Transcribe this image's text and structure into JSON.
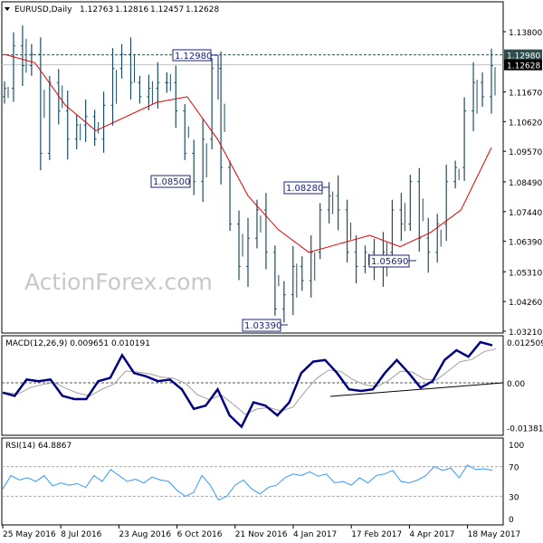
{
  "header": {
    "symbol": "EURUSD,Daily",
    "open": "1.12763",
    "high": "1.12816",
    "low": "1.12457",
    "close": "1.12628"
  },
  "watermark": "ActionForex.com",
  "colors": {
    "bars": "#1d4e63",
    "ma": "#e00000",
    "macd": "#000080",
    "signal": "#a0a0a0",
    "rsi": "#3399ff"
  },
  "chart_data": [
    {
      "type": "ohlc",
      "title": "EURUSD,Daily",
      "yticks": [
        "1.13800",
        "1.12980",
        "1.12628",
        "1.11670",
        "1.10620",
        "1.09570",
        "1.08490",
        "1.07440",
        "1.06390",
        "1.05310",
        "1.04260",
        "1.03210"
      ],
      "ylim": [
        1.0321,
        1.1435
      ],
      "current_price": "1.12628",
      "level_line": "1.12980",
      "annotations": [
        "1.12980",
        "1.08500",
        "1.08280",
        "1.05690",
        "1.03390"
      ],
      "closes": [
        1.118,
        1.133,
        1.126,
        1.13,
        1.095,
        1.12,
        1.11,
        1.1,
        1.105,
        1.108,
        1.1,
        1.112,
        1.125,
        1.13,
        1.12,
        1.115,
        1.118,
        1.12,
        1.12,
        1.11,
        1.095,
        1.085,
        1.1,
        1.125,
        1.09,
        1.07,
        1.055,
        1.065,
        1.075,
        1.06,
        1.04,
        1.045,
        1.055,
        1.05,
        1.06,
        1.075,
        1.08,
        1.075,
        1.06,
        1.055,
        1.06,
        1.055,
        1.06,
        1.075,
        1.07,
        1.085,
        1.065,
        1.06,
        1.07,
        1.085,
        1.09,
        1.11,
        1.12,
        1.115,
        1.126
      ],
      "moving_average": [
        1.13,
        1.127,
        1.112,
        1.103,
        1.108,
        1.113,
        1.115,
        1.1,
        1.08,
        1.068,
        1.06,
        1.063,
        1.066,
        1.062,
        1.067,
        1.075,
        1.097
      ]
    },
    {
      "type": "line",
      "title": "MACD(12,26,9) 0.009651 0.010191",
      "yticks": [
        "0.012509",
        "0.00",
        "-0.013813"
      ],
      "ylim": [
        -0.0148,
        0.0135
      ],
      "macd": [
        -0.003,
        -0.004,
        0.001,
        0.0005,
        0.001,
        -0.004,
        -0.005,
        -0.005,
        0.0005,
        0.0015,
        0.0085,
        0.003,
        0.002,
        0.0005,
        0.001,
        -0.002,
        -0.008,
        -0.007,
        -0.002,
        -0.01,
        -0.0135,
        -0.006,
        -0.007,
        -0.01,
        -0.006,
        0.003,
        0.0065,
        0.007,
        0.003,
        -0.002,
        -0.0025,
        -0.002,
        0.003,
        0.007,
        0.003,
        -0.0015,
        0.0005,
        0.007,
        0.01,
        0.008,
        0.0125,
        0.0115
      ]
    },
    {
      "type": "line",
      "title": "RSI(14) 64.8867",
      "yticks": [
        "100",
        "70",
        "30",
        "0"
      ],
      "ylim": [
        0,
        100
      ],
      "levels": [
        70,
        30
      ],
      "rsi": [
        40,
        58,
        52,
        55,
        50,
        58,
        44,
        48,
        45,
        47,
        42,
        58,
        50,
        66,
        58,
        50,
        53,
        48,
        56,
        52,
        50,
        38,
        30,
        35,
        58,
        45,
        25,
        30,
        45,
        52,
        40,
        33,
        42,
        45,
        55,
        60,
        58,
        63,
        57,
        60,
        48,
        50,
        45,
        55,
        48,
        58,
        60,
        65,
        50,
        48,
        52,
        58,
        70,
        65,
        68,
        55,
        72,
        66,
        67,
        64.89
      ]
    }
  ],
  "xaxis": [
    "25 May 2016",
    "8 Jul 2016",
    "23 Aug 2016",
    "6 Oct 2016",
    "21 Nov 2016",
    "4 Jan 2017",
    "17 Feb 2017",
    "4 Apr 2017",
    "18 May 2017"
  ]
}
